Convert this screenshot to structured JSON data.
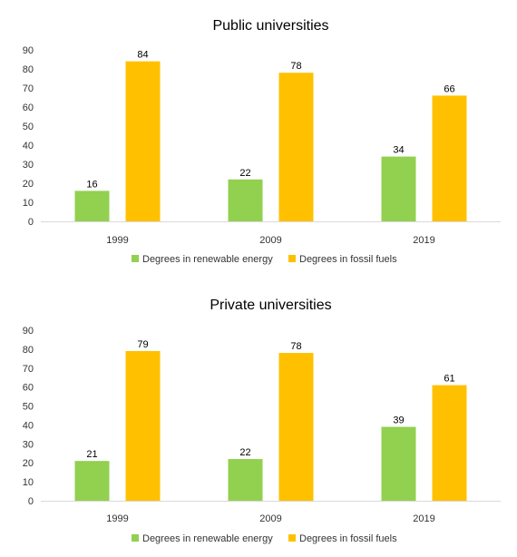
{
  "chart_data": [
    {
      "type": "bar",
      "title": "Public universities",
      "categories": [
        "1999",
        "2009",
        "2019"
      ],
      "series": [
        {
          "name": "Degrees in renewable energy",
          "values": [
            16,
            22,
            34
          ],
          "color": "#92D050"
        },
        {
          "name": "Degrees in fossil fuels",
          "values": [
            84,
            78,
            66
          ],
          "color": "#FFC000"
        }
      ],
      "ylim": [
        0,
        90
      ],
      "yticks": [
        0,
        10,
        20,
        30,
        40,
        50,
        60,
        70,
        80,
        90
      ],
      "data_labels": true,
      "grid": false,
      "legend": "bottom"
    },
    {
      "type": "bar",
      "title": "Private universities",
      "categories": [
        "1999",
        "2009",
        "2019"
      ],
      "series": [
        {
          "name": "Degrees in renewable energy",
          "values": [
            21,
            22,
            39
          ],
          "color": "#92D050"
        },
        {
          "name": "Degrees in fossil fuels",
          "values": [
            79,
            78,
            61
          ],
          "color": "#FFC000"
        }
      ],
      "ylim": [
        0,
        90
      ],
      "yticks": [
        0,
        10,
        20,
        30,
        40,
        50,
        60,
        70,
        80,
        90
      ],
      "data_labels": true,
      "grid": false,
      "legend": "bottom"
    }
  ]
}
